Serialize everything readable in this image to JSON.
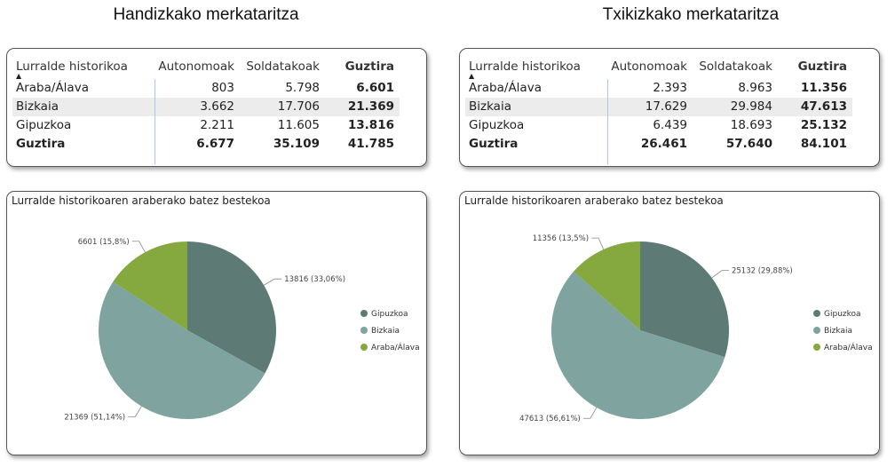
{
  "colors": {
    "Gipuzkoa": "#5e7a75",
    "Bizkaia": "#7fa39e",
    "Araba/Álava": "#86a93f"
  },
  "panels": [
    {
      "title": "Handizkako merkataritza",
      "table": {
        "headers": [
          "Lurralde historikoa",
          "Autonomoak",
          "Soldatakoak",
          "Guztira"
        ],
        "rows": [
          [
            "Araba/Álava",
            "803",
            "5.798",
            "6.601"
          ],
          [
            "Bizkaia",
            "3.662",
            "17.706",
            "21.369"
          ],
          [
            "Gipuzkoa",
            "2.211",
            "11.605",
            "13.816"
          ]
        ],
        "total": [
          "Guztira",
          "6.677",
          "35.109",
          "41.785"
        ]
      },
      "chart_data": {
        "type": "pie",
        "title": "Lurralde historikoaren araberako batez bestekoa",
        "categories": [
          "Gipuzkoa",
          "Bizkaia",
          "Araba/Álava"
        ],
        "values": [
          13816,
          21369,
          6601
        ],
        "labels": [
          "13816 (33,06%)",
          "21369 (51,14%)",
          "6601 (15,8%)"
        ],
        "legend": [
          "Gipuzkoa",
          "Bizkaia",
          "Araba/Álava"
        ],
        "legend_position": "right"
      }
    },
    {
      "title": "Txikizkako merkataritza",
      "table": {
        "headers": [
          "Lurralde historikoa",
          "Autonomoak",
          "Soldatakoak",
          "Guztira"
        ],
        "rows": [
          [
            "Araba/Álava",
            "2.393",
            "8.963",
            "11.356"
          ],
          [
            "Bizkaia",
            "17.629",
            "29.984",
            "47.613"
          ],
          [
            "Gipuzkoa",
            "6.439",
            "18.693",
            "25.132"
          ]
        ],
        "total": [
          "Guztira",
          "26.461",
          "57.640",
          "84.101"
        ]
      },
      "chart_data": {
        "type": "pie",
        "title": "Lurralde historikoaren araberako batez bestekoa",
        "categories": [
          "Gipuzkoa",
          "Bizkaia",
          "Araba/Álava"
        ],
        "values": [
          25132,
          47613,
          11356
        ],
        "labels": [
          "25132 (29,88%)",
          "47613 (56,61%)",
          "11356 (13,5%)"
        ],
        "legend": [
          "Gipuzkoa",
          "Bizkaia",
          "Araba/Álava"
        ],
        "legend_position": "right"
      }
    }
  ]
}
